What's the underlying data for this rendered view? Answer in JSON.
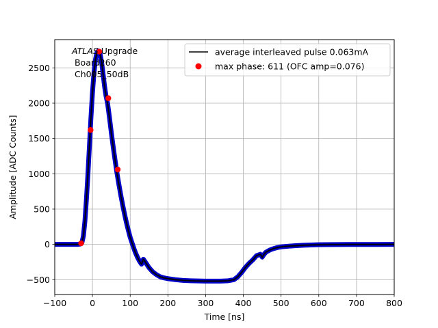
{
  "chart_data": {
    "type": "line",
    "title": "",
    "xlabel": "Time [ns]",
    "ylabel": "Amplitude [ADC Counts]",
    "xlim": [
      -100,
      800
    ],
    "ylim": [
      -710,
      2900
    ],
    "xticks": [
      -100,
      0,
      100,
      200,
      300,
      400,
      500,
      600,
      700,
      800
    ],
    "yticks": [
      -500,
      0,
      500,
      1000,
      1500,
      2000,
      2500
    ],
    "grid": true,
    "legend_position": "top-right",
    "annotation": {
      "line1_italic": "ATLAS",
      "line1_rest": " Upgrade",
      "line2": " Board260",
      "line3": " Ch005_50dB"
    },
    "series": [
      {
        "name": "average interleaved pulse 0.063mA",
        "kind": "line",
        "color": "#000000",
        "x": [
          -100,
          -40,
          -32,
          -28,
          -24,
          -20,
          -16,
          -12,
          -8,
          -4,
          0,
          4,
          8,
          12,
          16,
          20,
          24,
          28,
          32,
          36,
          40,
          45,
          50,
          55,
          60,
          65,
          70,
          75,
          80,
          85,
          90,
          95,
          100,
          105,
          110,
          115,
          120,
          125,
          130,
          135,
          140,
          150,
          160,
          170,
          180,
          190,
          200,
          220,
          240,
          260,
          280,
          300,
          320,
          340,
          360,
          375,
          385,
          395,
          405,
          415,
          425,
          435,
          440,
          445,
          450,
          455,
          460,
          470,
          480,
          490,
          500,
          520,
          540,
          560,
          580,
          600,
          620,
          650,
          700,
          750,
          800
        ],
        "y": [
          0,
          0,
          5,
          25,
          120,
          330,
          640,
          1000,
          1400,
          1800,
          2150,
          2430,
          2620,
          2720,
          2740,
          2700,
          2590,
          2420,
          2240,
          2100,
          2000,
          1800,
          1580,
          1380,
          1190,
          1010,
          850,
          700,
          560,
          430,
          310,
          200,
          100,
          20,
          -60,
          -130,
          -190,
          -240,
          -280,
          -210,
          -250,
          -330,
          -390,
          -430,
          -460,
          -475,
          -485,
          -500,
          -510,
          -515,
          -518,
          -520,
          -520,
          -520,
          -515,
          -500,
          -460,
          -400,
          -330,
          -270,
          -220,
          -160,
          -150,
          -140,
          -180,
          -140,
          -110,
          -80,
          -60,
          -45,
          -35,
          -25,
          -18,
          -12,
          -8,
          -5,
          -3,
          -2,
          -1,
          -1,
          0
        ]
      },
      {
        "name": "",
        "kind": "scatter-dense",
        "color": "#0000cc",
        "x": [
          -100,
          -40,
          -32,
          -28,
          -24,
          -20,
          -16,
          -12,
          -8,
          -4,
          0,
          4,
          8,
          12,
          16,
          20,
          24,
          28,
          32,
          36,
          40,
          45,
          50,
          55,
          60,
          65,
          70,
          75,
          80,
          85,
          90,
          95,
          100,
          105,
          110,
          115,
          120,
          125,
          130,
          135,
          140,
          150,
          160,
          170,
          180,
          190,
          200,
          220,
          240,
          260,
          280,
          300,
          320,
          340,
          360,
          375,
          385,
          395,
          405,
          415,
          425,
          435,
          440,
          445,
          450,
          455,
          460,
          470,
          480,
          490,
          500,
          520,
          540,
          560,
          580,
          600,
          620,
          650,
          700,
          750,
          800
        ],
        "y": [
          0,
          0,
          5,
          25,
          120,
          330,
          640,
          1000,
          1400,
          1800,
          2150,
          2430,
          2620,
          2720,
          2740,
          2700,
          2590,
          2420,
          2240,
          2100,
          2000,
          1800,
          1580,
          1380,
          1190,
          1010,
          850,
          700,
          560,
          430,
          310,
          200,
          100,
          20,
          -60,
          -130,
          -190,
          -240,
          -280,
          -210,
          -250,
          -330,
          -390,
          -430,
          -460,
          -475,
          -485,
          -500,
          -510,
          -515,
          -518,
          -520,
          -520,
          -520,
          -515,
          -500,
          -460,
          -400,
          -330,
          -270,
          -220,
          -160,
          -150,
          -140,
          -180,
          -140,
          -110,
          -80,
          -60,
          -45,
          -35,
          -25,
          -18,
          -12,
          -8,
          -5,
          -3,
          -2,
          -1,
          -1,
          0
        ]
      },
      {
        "name": "max phase: 611 (OFC amp=0.076)",
        "kind": "scatter",
        "color": "#ff0000",
        "x": [
          -30,
          -5,
          18,
          42,
          67
        ],
        "y": [
          15,
          1620,
          2730,
          2070,
          1060
        ]
      }
    ]
  }
}
